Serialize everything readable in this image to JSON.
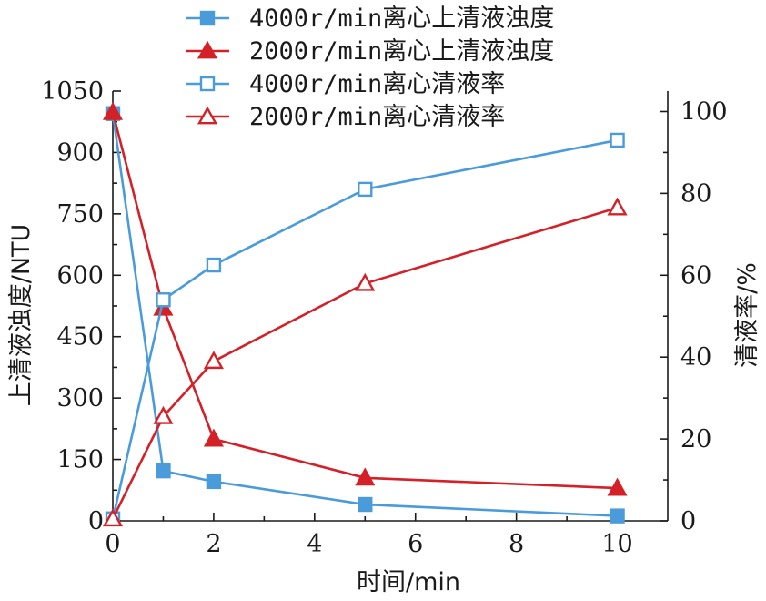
{
  "chart_data": {
    "type": "line",
    "x": [
      0,
      1,
      2,
      5,
      10
    ],
    "xlabel": "时间/min",
    "xlim": [
      0,
      11
    ],
    "xticks": [
      0,
      2,
      4,
      6,
      8,
      10
    ],
    "ylabel_left": "上清液浊度/NTU",
    "ylim_left": [
      0,
      1050
    ],
    "yticks_left": [
      0,
      150,
      300,
      450,
      600,
      750,
      900,
      1050
    ],
    "ylabel_right": "清液率/%",
    "ylim_right": [
      0,
      105
    ],
    "yticks_right": [
      0,
      20,
      40,
      60,
      80,
      100
    ],
    "grid": false,
    "legend_position": "top-center",
    "series": [
      {
        "name": "4000r/min离心上清液浊度",
        "axis": "left",
        "marker": "filled-square",
        "color": "#4a9bd9",
        "values": [
          995,
          122,
          96,
          40,
          12
        ]
      },
      {
        "name": "2000r/min离心上清液浊度",
        "axis": "left",
        "marker": "filled-triangle",
        "color": "#d42027",
        "values": [
          998,
          520,
          200,
          105,
          80
        ]
      },
      {
        "name": "4000r/min离心清液率",
        "axis": "right",
        "marker": "open-square",
        "color": "#4a9bd9",
        "values": [
          0.5,
          54,
          62.5,
          81,
          93
        ]
      },
      {
        "name": "2000r/min离心清液率",
        "axis": "right",
        "marker": "open-triangle",
        "color": "#d42027",
        "values": [
          0.5,
          25.5,
          39,
          58,
          76.5
        ]
      }
    ]
  }
}
